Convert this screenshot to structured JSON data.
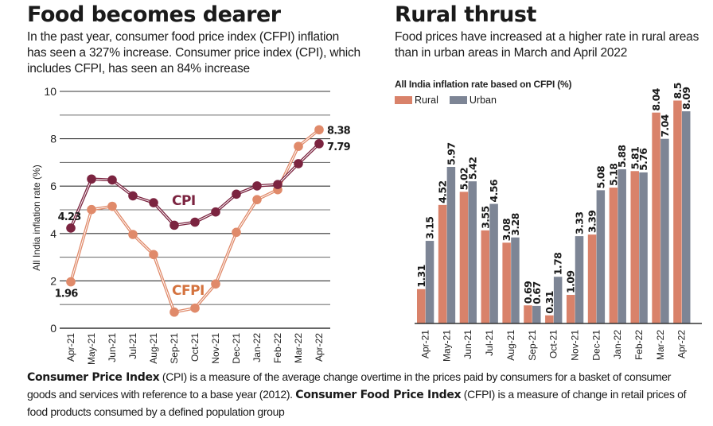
{
  "left": {
    "title": "Food becomes dearer",
    "subtitle": "In the past year, consumer food price index (CFPI) inflation has seen a 327% increase. Consumer price index (CPI), which includes CFPI, has seen an 84% increase"
  },
  "right": {
    "title": "Rural thrust",
    "subtitle": "Food prices have increased at a higher rate in rural areas than in urban areas in March and April 2022",
    "heading": "All India inflation rate based on CFPI (%)"
  },
  "footnote": {
    "term1": "Consumer Price Index",
    "text1": " (CPI) is a measure of the average change overtime in the prices paid by consumers for a basket of consumer goods and services with reference to a base year (2012). ",
    "term2": "Consumer Food Price Index",
    "text2": " (CFPI) is a measure of change in retail prices of food products consumed by a defined population group"
  },
  "colors": {
    "cpi": "#7b2440",
    "cfpi": "#e08a6a",
    "rural": "#d9826a",
    "urban": "#7d8595",
    "cfpi_label": "#d4733f",
    "grid": "#555555"
  },
  "chart_data": [
    {
      "type": "line",
      "title": "Food becomes dearer",
      "xlabel": "",
      "ylabel": "All India inflation rate (%)",
      "ylim": [
        0,
        10
      ],
      "yticks": [
        0,
        2,
        4,
        6,
        8,
        10
      ],
      "grid": true,
      "categories": [
        "Apr-21",
        "May-21",
        "Jun-21",
        "Jul-21",
        "Aug-21",
        "Sep-21",
        "Oct-21",
        "Nov-21",
        "Dec-21",
        "Jan-22",
        "Feb-22",
        "Mar-22",
        "Apr-22"
      ],
      "series": [
        {
          "name": "CPI",
          "values": [
            4.23,
            6.3,
            6.26,
            5.59,
            5.3,
            4.35,
            4.48,
            4.91,
            5.66,
            6.01,
            6.07,
            6.95,
            7.79
          ]
        },
        {
          "name": "CFPI",
          "values": [
            1.96,
            5.01,
            5.15,
            3.96,
            3.11,
            0.68,
            0.85,
            1.87,
            4.05,
            5.43,
            5.85,
            7.68,
            8.38
          ]
        }
      ],
      "annotations": [
        {
          "series": "CPI",
          "category": "Apr-21",
          "text": "4.23"
        },
        {
          "series": "CFPI",
          "category": "Apr-21",
          "text": "1.96"
        },
        {
          "series": "CFPI",
          "category": "Apr-22",
          "text": "8.38"
        },
        {
          "series": "CPI",
          "category": "Apr-22",
          "text": "7.79"
        }
      ],
      "series_labels": [
        "CPI",
        "CFPI"
      ]
    },
    {
      "type": "bar",
      "title": "Rural thrust",
      "subtitle": "All India inflation rate based on CFPI (%)",
      "xlabel": "",
      "ylabel": "",
      "ylim": [
        0,
        9
      ],
      "legend": "top-left",
      "categories": [
        "Apr-21",
        "May-21",
        "Jun-21",
        "Jul-21",
        "Aug-21",
        "Sep-21",
        "Oct-21",
        "Nov-21",
        "Dec-21",
        "Jan-22",
        "Feb-22",
        "Mar-22",
        "Apr-22"
      ],
      "series": [
        {
          "name": "Rural",
          "values": [
            1.31,
            4.52,
            5.02,
            3.55,
            3.08,
            0.69,
            0.31,
            1.09,
            3.39,
            5.18,
            5.81,
            8.04,
            8.5
          ],
          "labels": [
            "1.31",
            "4.52",
            "5.02",
            "3.55",
            "3.08",
            "0.69",
            "0.31",
            "1.09",
            "3.39",
            "5.18",
            "5.81",
            "8.04",
            "8.5"
          ]
        },
        {
          "name": "Urban",
          "values": [
            3.15,
            5.97,
            5.42,
            4.56,
            3.28,
            0.67,
            1.78,
            3.33,
            5.08,
            5.88,
            5.76,
            7.04,
            8.09
          ],
          "labels": [
            "3.15",
            "5.97",
            "5.42",
            "4.56",
            "3.28",
            "0.67",
            "1.78",
            "3.33",
            "5.08",
            "5.88",
            "5.76",
            "7.04",
            "8.09"
          ]
        }
      ]
    }
  ]
}
